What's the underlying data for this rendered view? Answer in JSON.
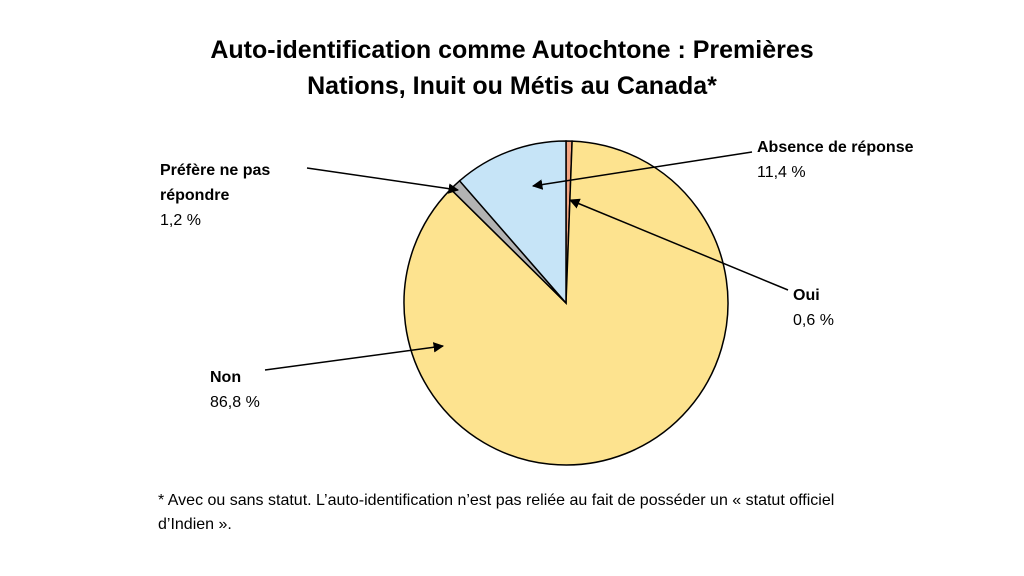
{
  "chart_data": {
    "type": "pie",
    "title": [
      "Auto-identification comme Autochtone : Premières",
      "Nations, Inuit ou Métis au Canada*"
    ],
    "categories": [
      "Oui",
      "Non",
      "Préfère ne pas répondre",
      "Absence de réponse"
    ],
    "values": [
      0.6,
      86.8,
      1.2,
      11.4
    ],
    "value_labels": [
      "0,6 %",
      "86,8 %",
      "1,2 %",
      "11,4 %"
    ],
    "colors": [
      "#f4a582",
      "#fde38f",
      "#b3b3b3",
      "#c6e4f7"
    ],
    "note": [
      "* Avec ou sans statut. L’auto-identification n’est pas reliée au fait de posséder un « statut officiel",
      "d’Indien »."
    ]
  }
}
